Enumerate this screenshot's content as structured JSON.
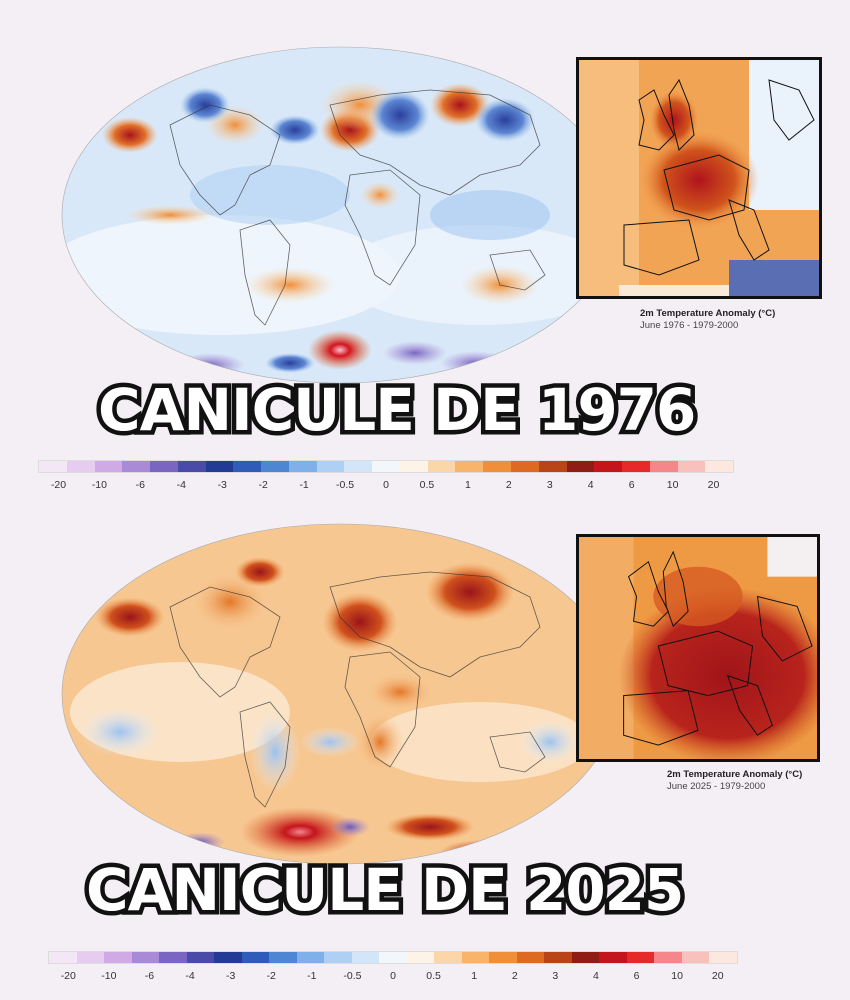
{
  "colorbar": {
    "colors": [
      "#f3e6f5",
      "#e6ccef",
      "#cfaae4",
      "#a98ad6",
      "#7a66c2",
      "#4a4aa8",
      "#243b95",
      "#2f5cb8",
      "#4e86d4",
      "#7fb0ea",
      "#aed0f4",
      "#d3e6f9",
      "#f2f7fc",
      "#fdf3e7",
      "#fbd6a9",
      "#f7b46a",
      "#f08f3a",
      "#dd6a20",
      "#b84418",
      "#8f1d16",
      "#c4141c",
      "#e62a2a",
      "#f5868a",
      "#f9c1bb",
      "#fde8e0"
    ],
    "ticks": [
      "-20",
      "-10",
      "-6",
      "-4",
      "-3",
      "-2",
      "-1",
      "-0.5",
      "0",
      "0.5",
      "1",
      "2",
      "3",
      "4",
      "6",
      "10",
      "20"
    ]
  },
  "panels": [
    {
      "title": "CANICULE DE 1976",
      "caption_title": "2m Temperature Anomaly (°C)",
      "caption_sub": "June 1976 - 1979-2000",
      "palette": "cool",
      "base_color": "#dbe9f8",
      "inset_base": "#f2a455"
    },
    {
      "title": "CANICULE DE 2025",
      "caption_title": "2m Temperature Anomaly (°C)",
      "caption_sub": "June 2025 - 1979-2000",
      "palette": "warm",
      "base_color": "#f6c48c",
      "inset_base": "#ee9a45"
    }
  ]
}
